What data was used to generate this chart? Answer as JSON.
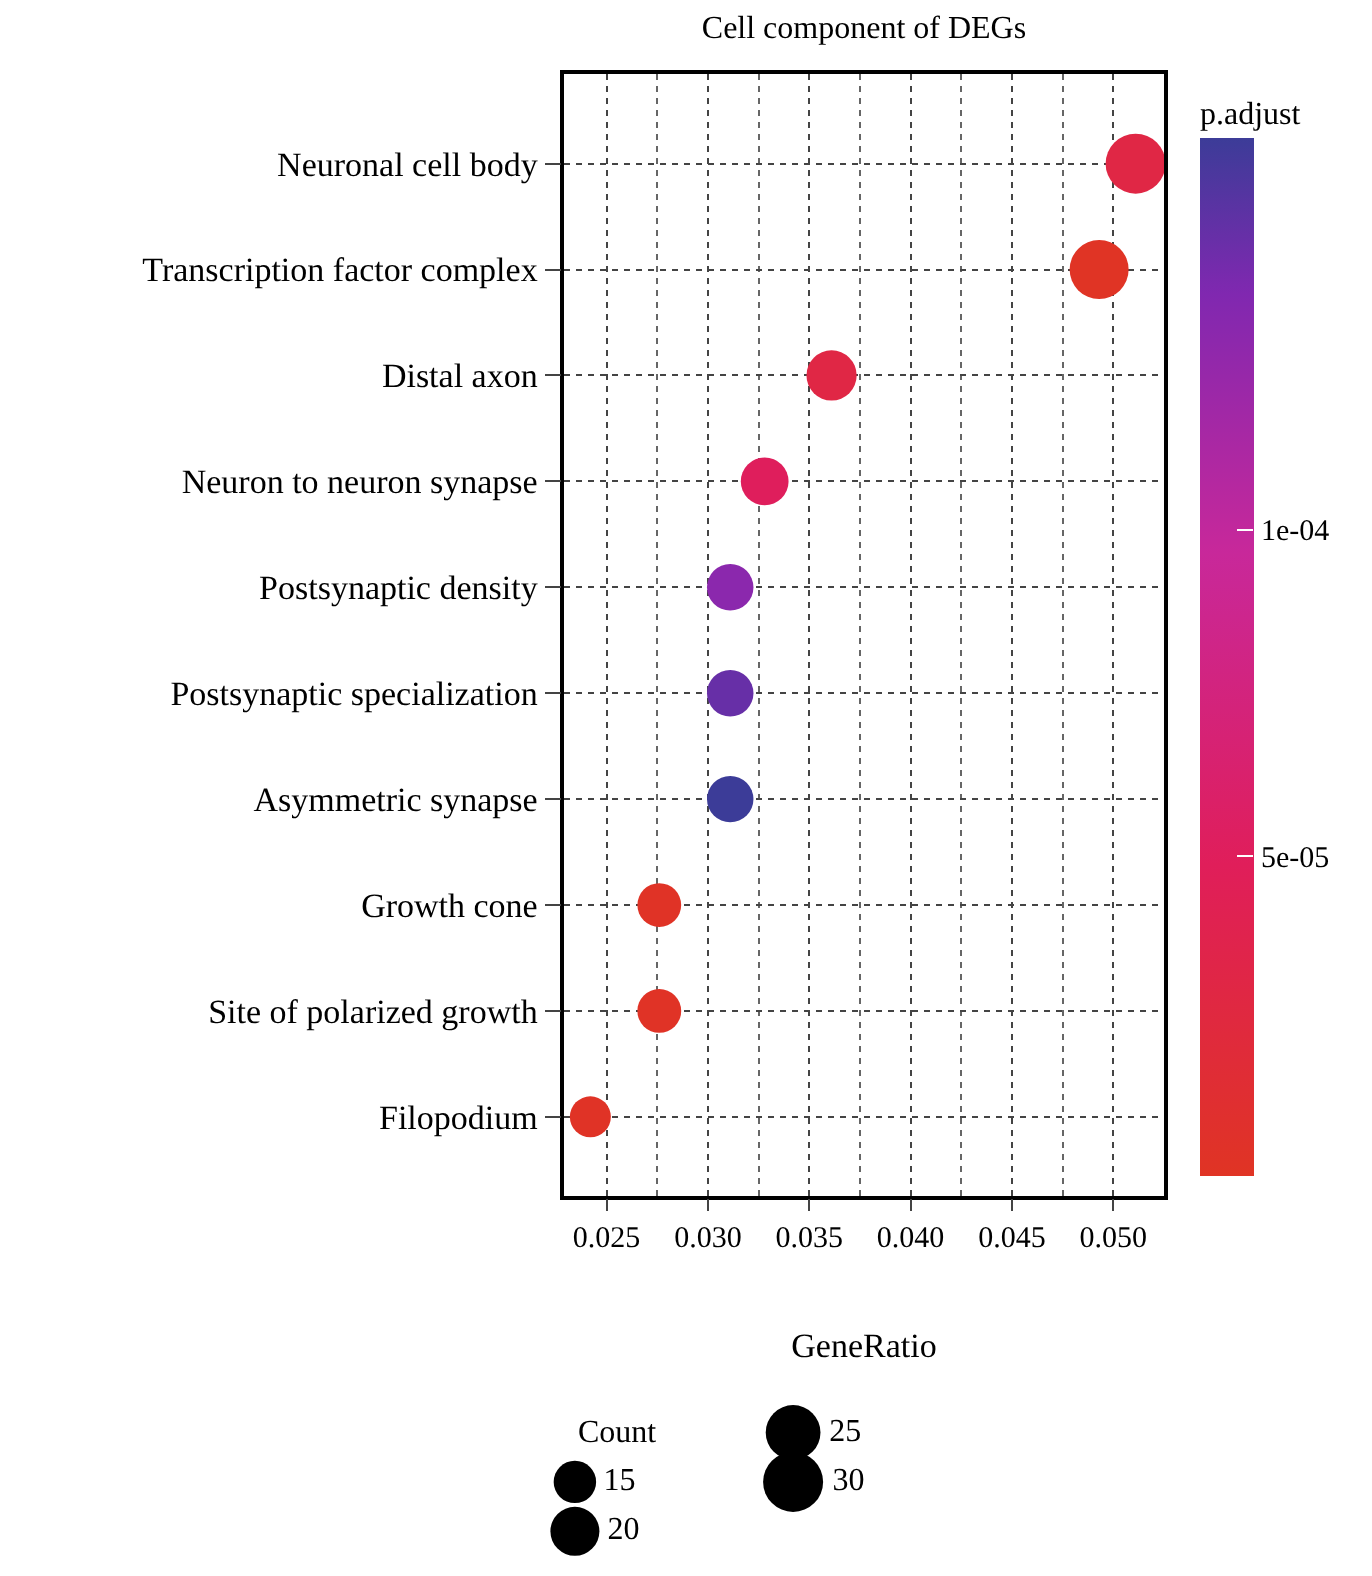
{
  "chart_data": {
    "type": "bubble",
    "title": "Cell component of DEGs",
    "xlabel": "GeneRatio",
    "legend_title": "Count",
    "clabel": "p.adjust",
    "categories": [
      "Neuronal cell body",
      "Transcription factor complex",
      "Distal axon",
      "Neuron to neuron synapse",
      "Postsynaptic density",
      "Postsynaptic specialization",
      "Asymmetric synapse",
      "Growth cone",
      "Site of polarized growth",
      "Filopodium"
    ],
    "values": [
      0.0511,
      0.0493,
      0.0361,
      0.0328,
      0.0311,
      0.0311,
      0.0311,
      0.0276,
      0.0276,
      0.0242
    ],
    "sizes": [
      30,
      29,
      21,
      19,
      18,
      18,
      18,
      16,
      16,
      14
    ],
    "cvalues": [
      3e-05,
      2e-06,
      3e-05,
      5e-05,
      0.00013,
      0.000145,
      0.00016,
      3e-06,
      3e-06,
      3e-06
    ],
    "size_legend": [
      15,
      20,
      25,
      30
    ],
    "orientation": "horizontal",
    "xlim": [
      0.0229,
      0.0525
    ],
    "xticks": [
      0.025,
      {
        "value": 0.03,
        "label": "0.030"
      },
      0.035,
      {
        "value": 0.04,
        "label": "0.040"
      },
      0.045,
      {
        "value": 0.05,
        "label": "0.050"
      }
    ],
    "clim": [
      1e-06,
      0.00016
    ],
    "cticks": [
      {
        "value": 5e-05,
        "label": "5e-05"
      },
      {
        "value": 0.0001,
        "label": "1e-04"
      }
    ],
    "grid": true
  }
}
